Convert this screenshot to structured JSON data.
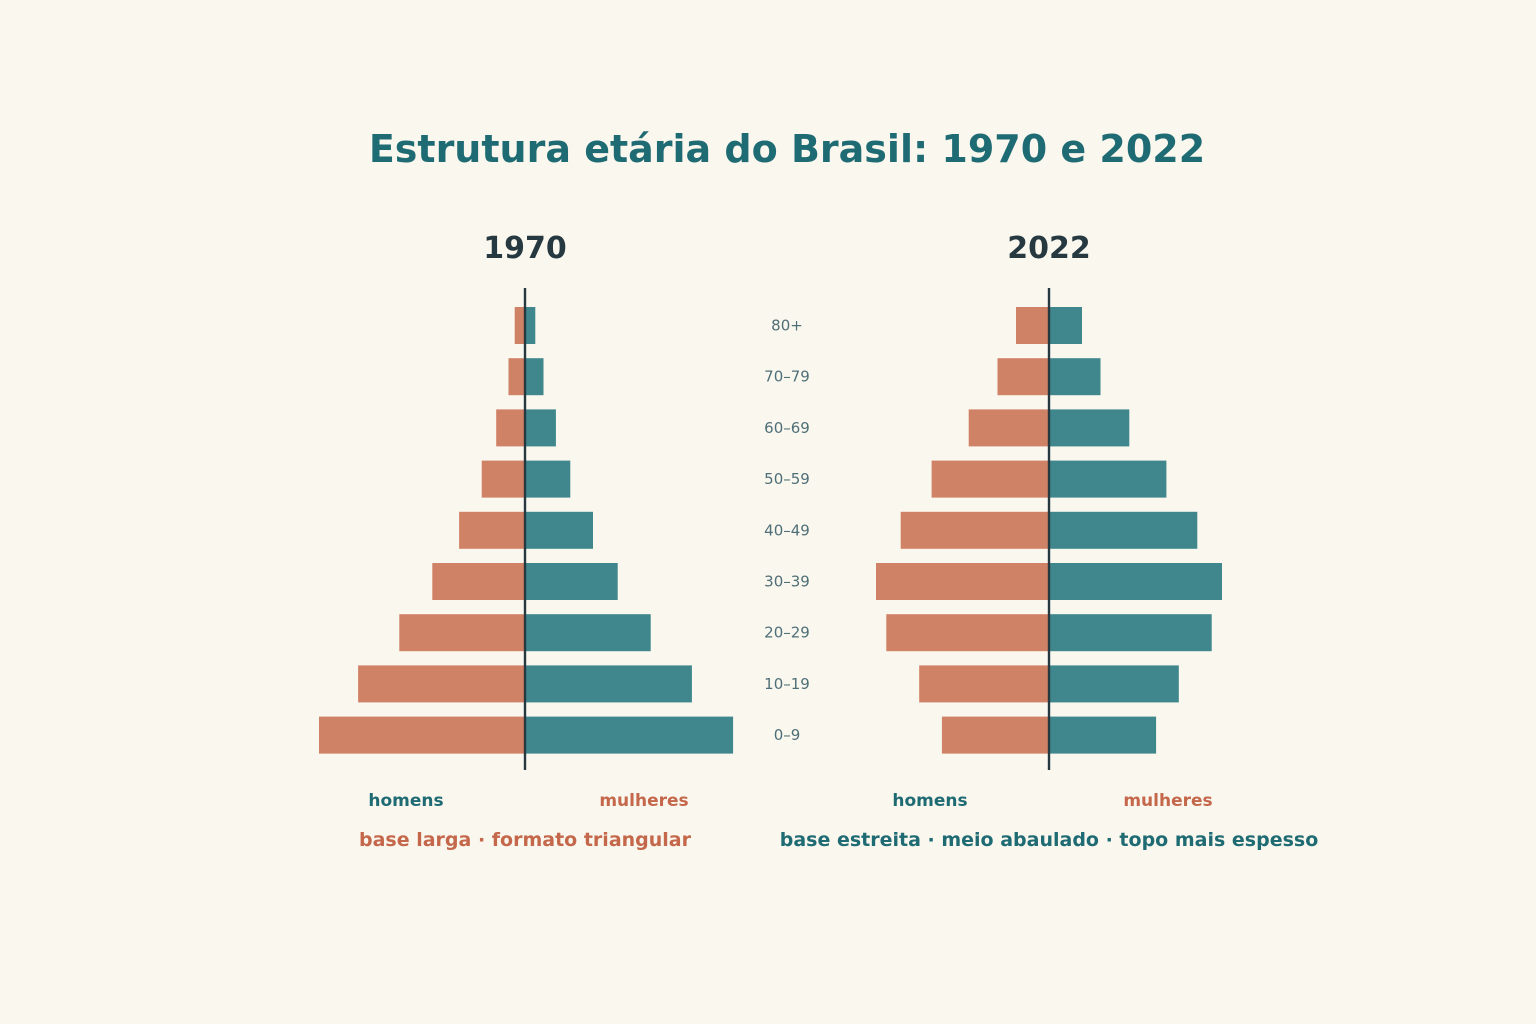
{
  "chart_data": {
    "type": "bar",
    "title": "Estrutura etária do Brasil: 1970 e 2022",
    "categories": [
      "80+",
      "70–79",
      "60–69",
      "50–59",
      "40–49",
      "30–39",
      "20–29",
      "10–19",
      "0–9"
    ],
    "xlim": [
      0,
      10
    ],
    "colors": {
      "homens": "#cf8266",
      "mulheres": "#3f878c",
      "title": "#1f6b73",
      "axis": "#263840"
    },
    "panels": [
      {
        "title": "1970",
        "series": [
          {
            "name": "homens",
            "values": [
              0.5,
              0.8,
              1.4,
              2.1,
              3.2,
              4.5,
              6.1,
              8.1,
              10.0
            ]
          },
          {
            "name": "mulheres",
            "values": [
              0.5,
              0.9,
              1.5,
              2.2,
              3.3,
              4.5,
              6.1,
              8.1,
              10.1
            ]
          }
        ],
        "legend": {
          "left": "homens",
          "right": "mulheres"
        },
        "caption": "base larga · formato triangular",
        "caption_color": "#c4674a"
      },
      {
        "title": "2022",
        "series": [
          {
            "name": "homens",
            "values": [
              1.6,
              2.5,
              3.9,
              5.7,
              7.2,
              8.4,
              7.9,
              6.3,
              5.2
            ]
          },
          {
            "name": "mulheres",
            "values": [
              1.6,
              2.5,
              3.9,
              5.7,
              7.2,
              8.4,
              7.9,
              6.3,
              5.2
            ]
          }
        ],
        "legend": {
          "left": "homens",
          "right": "mulheres"
        },
        "caption": "base estreita · meio abaulado · topo mais espesso",
        "caption_color": "#1f6b73"
      }
    ]
  }
}
